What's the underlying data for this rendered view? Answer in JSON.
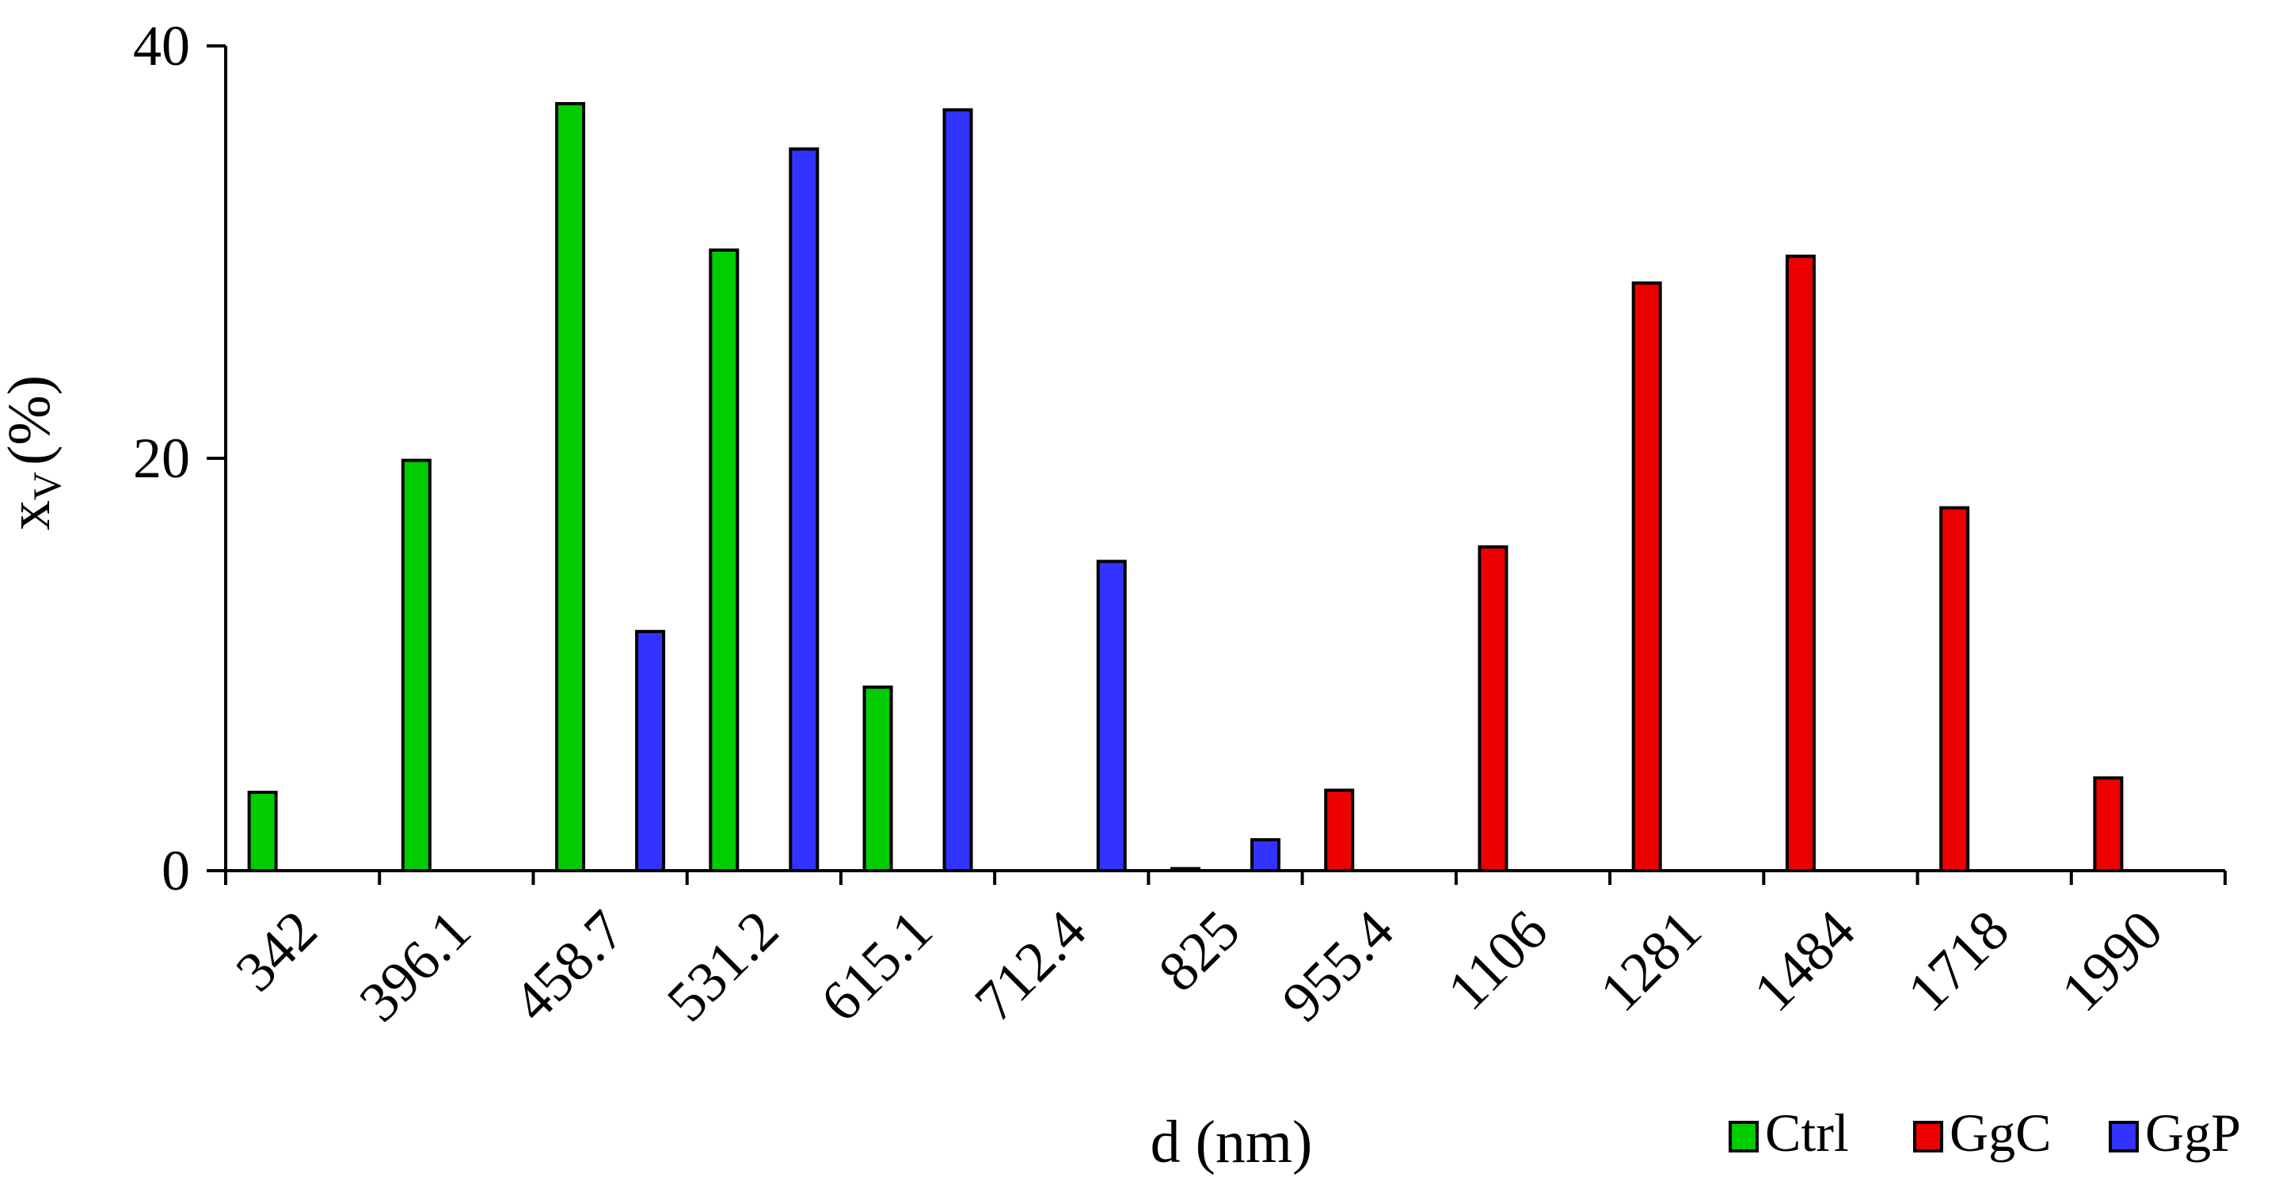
{
  "chart_data": {
    "type": "bar",
    "title": "",
    "xlabel": "d (nm)",
    "ylabel_main": "x",
    "ylabel_sub": "V",
    "ylabel_unit": "(%)",
    "ylim": [
      0,
      40
    ],
    "yticks": [
      0,
      20,
      40
    ],
    "categories": [
      "342",
      "396.1",
      "458.7",
      "531.2",
      "615.1",
      "712.4",
      "825",
      "955.4",
      "1106",
      "1281",
      "1484",
      "1718",
      "1990"
    ],
    "series": [
      {
        "name": "Ctrl",
        "color": "#00cc00",
        "values": [
          3.8,
          19.9,
          37.2,
          30.1,
          8.9,
          0,
          0.1,
          0,
          0,
          0,
          0,
          0,
          0
        ]
      },
      {
        "name": "GgP",
        "color": "#3333ff",
        "values": [
          0,
          0,
          11.6,
          35.0,
          36.9,
          15.0,
          1.5,
          0,
          0,
          0,
          0,
          0,
          0
        ]
      },
      {
        "name": "GgC",
        "color": "#ee0000",
        "values": [
          0,
          0,
          0,
          0,
          0,
          0,
          0,
          3.9,
          15.7,
          28.5,
          29.8,
          17.6,
          4.5
        ]
      }
    ],
    "legend": {
      "placement": "bottom-right",
      "order": [
        "Ctrl",
        "GgC",
        "GgP"
      ]
    },
    "grid": false
  }
}
